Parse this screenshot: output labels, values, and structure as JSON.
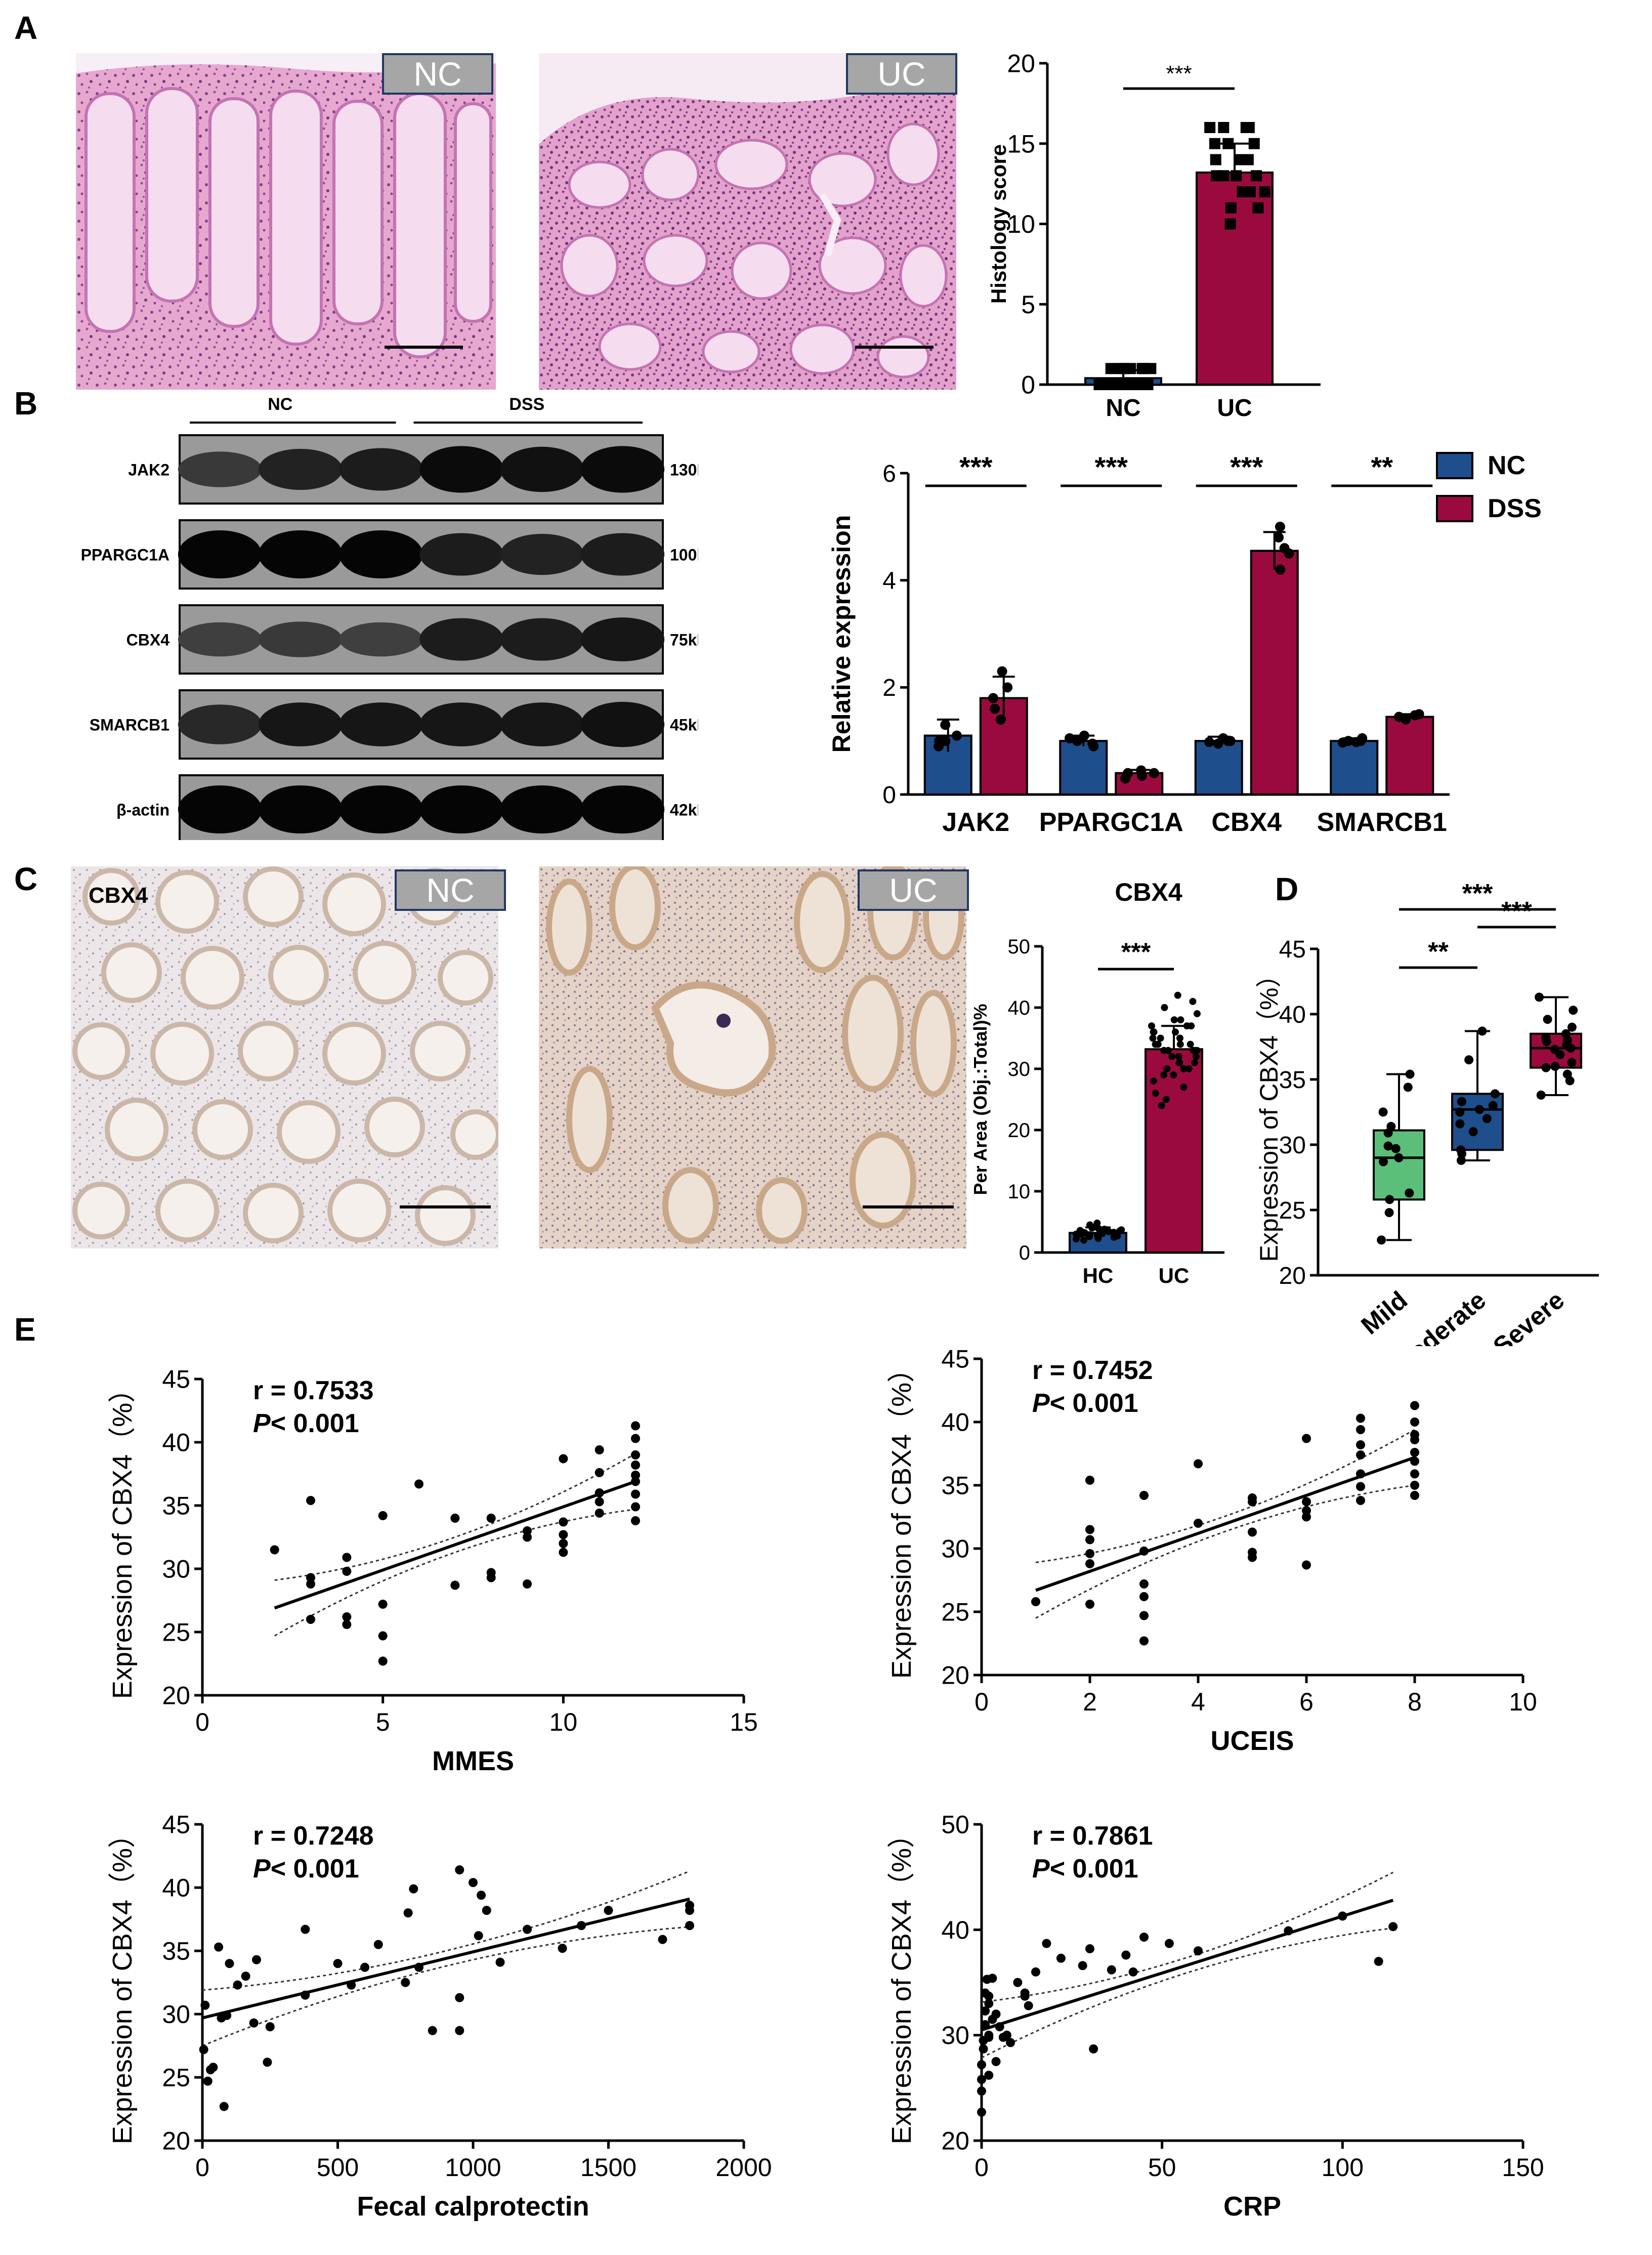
{
  "panels": {
    "a": "A",
    "b": "B",
    "c": "C",
    "d": "D",
    "e": "E"
  },
  "colors": {
    "nc_blue": "#1f4e8c",
    "dss_red": "#9b0a3f",
    "mild_green": "#5bbf7a",
    "he_pink": "#e7a9cf",
    "ihc_tan": "#d9b99a"
  },
  "histology": {
    "panels": [
      {
        "tag": "NC"
      },
      {
        "tag": "UC"
      }
    ]
  },
  "ihc": {
    "label": "CBX4",
    "panels": [
      {
        "tag": "NC"
      },
      {
        "tag": "UC"
      }
    ]
  },
  "western": {
    "group_labels": [
      "NC",
      "DSS"
    ],
    "bands": [
      {
        "protein": "JAK2",
        "size": "130KD",
        "intensity": [
          0.55,
          0.75,
          0.8,
          0.95,
          0.9,
          0.95
        ]
      },
      {
        "protein": "PPARGC1A",
        "size": "100kD",
        "intensity": [
          1.0,
          1.0,
          1.0,
          0.8,
          0.75,
          0.8
        ]
      },
      {
        "protein": "CBX4",
        "size": "75kD",
        "intensity": [
          0.5,
          0.55,
          0.5,
          0.8,
          0.8,
          0.85
        ]
      },
      {
        "protein": "SMARCB1",
        "size": "45kD",
        "intensity": [
          0.7,
          0.85,
          0.85,
          0.85,
          0.85,
          0.9
        ]
      },
      {
        "protein": "β-actin",
        "size": "42kD",
        "intensity": [
          1.0,
          1.0,
          1.0,
          1.0,
          1.0,
          1.0
        ]
      }
    ]
  },
  "chart_data": [
    {
      "id": "A-histology-score",
      "type": "bar",
      "ylabel": "Histology score",
      "ylim": [
        0,
        20
      ],
      "yticks": [
        0,
        5,
        10,
        15,
        20
      ],
      "categories": [
        "NC",
        "UC"
      ],
      "values": [
        0.4,
        13.2
      ],
      "errors": [
        0.5,
        1.8
      ],
      "colors": [
        "#1f4e8c",
        "#9b0a3f"
      ],
      "points": [
        [
          0,
          0,
          0,
          0,
          0,
          0,
          0,
          0,
          0,
          0,
          1,
          1,
          1,
          1,
          1,
          1,
          0,
          0,
          0,
          1
        ],
        [
          16,
          16,
          16,
          16,
          15,
          15,
          14,
          14,
          14,
          13,
          13,
          13,
          13,
          12,
          12,
          12,
          11,
          11,
          10,
          15
        ]
      ],
      "significance": "***"
    },
    {
      "id": "B-relative-expression",
      "type": "bar",
      "ylabel": "Relative expression",
      "ylim": [
        0,
        6
      ],
      "yticks": [
        0,
        2,
        4,
        6
      ],
      "categories": [
        "JAK2",
        "PPARGC1A",
        "CBX4",
        "SMARCB1"
      ],
      "series": [
        {
          "name": "NC",
          "values": [
            1.1,
            1.0,
            1.0,
            1.0
          ],
          "errors": [
            0.3,
            0.1,
            0.08,
            0.05
          ],
          "points": [
            [
              1.3,
              1.1,
              1.0,
              0.9,
              1.0
            ],
            [
              1.1,
              1.0,
              0.95,
              0.9,
              1.05
            ],
            [
              1.05,
              1.0,
              0.98,
              0.95,
              1.0
            ],
            [
              1.05,
              1.0,
              0.98,
              0.97,
              1.0
            ]
          ]
        },
        {
          "name": "DSS",
          "values": [
            1.8,
            0.4,
            4.55,
            1.45
          ],
          "errors": [
            0.4,
            0.06,
            0.35,
            0.05
          ],
          "points": [
            [
              2.3,
              2.0,
              1.6,
              1.4,
              1.8
            ],
            [
              0.45,
              0.4,
              0.35,
              0.3,
              0.4
            ],
            [
              5.0,
              4.8,
              4.5,
              4.2,
              4.6
            ],
            [
              1.5,
              1.45,
              1.4,
              1.42,
              1.48
            ]
          ]
        }
      ],
      "significance": [
        "***",
        "***",
        "***",
        "**"
      ],
      "legend": "top-right"
    },
    {
      "id": "C-cbx4-area",
      "type": "bar",
      "title": "CBX4",
      "ylabel": "Per Area (Obj.:Total)%",
      "ylim": [
        0,
        50
      ],
      "yticks": [
        0,
        10,
        20,
        30,
        40,
        50
      ],
      "categories": [
        "HC",
        "UC"
      ],
      "values": [
        3.2,
        33.2
      ],
      "errors": [
        0.9,
        3.8
      ],
      "colors": [
        "#1f4e8c",
        "#9b0a3f"
      ],
      "points": [
        [
          2.0,
          2.3,
          2.6,
          2.8,
          3.0,
          3.2,
          3.3,
          3.5,
          3.6,
          3.8,
          4.0,
          4.2,
          4.5,
          2.5,
          3.1,
          2.9,
          3.4,
          3.7,
          2.2,
          4.8,
          3.0,
          2.7,
          3.9,
          3.3
        ],
        [
          24,
          25,
          26,
          27,
          28,
          29,
          30,
          30,
          31,
          31,
          32,
          32,
          33,
          33,
          33,
          34,
          34,
          34,
          35,
          35,
          36,
          36,
          37,
          37,
          38,
          38,
          39,
          40,
          41,
          42,
          29,
          31,
          33,
          35,
          36,
          32,
          34,
          30,
          37,
          33
        ]
      ],
      "significance": "***"
    },
    {
      "id": "D-cbx4-severity",
      "type": "box",
      "ylabel": "Expression of CBX4（%）",
      "ylim": [
        20,
        45
      ],
      "yticks": [
        20,
        25,
        30,
        35,
        40,
        45
      ],
      "categories": [
        "Mild",
        "Moderate",
        "Severe"
      ],
      "boxes": [
        {
          "min": 22.7,
          "q1": 25.8,
          "median": 29.0,
          "q3": 31.1,
          "max": 35.4
        },
        {
          "min": 28.8,
          "q1": 29.6,
          "median": 32.7,
          "q3": 33.9,
          "max": 38.7
        },
        {
          "min": 33.8,
          "q1": 35.9,
          "median": 37.4,
          "q3": 38.5,
          "max": 41.3
        }
      ],
      "colors": [
        "#5bbf7a",
        "#1f4e8c",
        "#9b0a3f"
      ],
      "points": [
        [
          22.7,
          24.8,
          25.8,
          26.3,
          28.7,
          29.0,
          29.7,
          29.9,
          30.9,
          31.4,
          32.5,
          34.4,
          35.4
        ],
        [
          28.8,
          29.3,
          29.6,
          31.6,
          32.5,
          32.7,
          33.0,
          33.3,
          33.9,
          36.5,
          38.7,
          32.0,
          31.0
        ],
        [
          33.8,
          34.9,
          35.4,
          35.9,
          36.3,
          36.9,
          37.3,
          37.4,
          37.6,
          37.9,
          38.2,
          38.5,
          39.0,
          39.6,
          40.3,
          41.3,
          36.0,
          38.0
        ]
      ],
      "significance": [
        {
          "pair": "Mild-Severe",
          "label": "***"
        },
        {
          "pair": "Mild-Moderate",
          "label": "**"
        },
        {
          "pair": "Moderate-Severe",
          "label": "***"
        }
      ]
    },
    {
      "id": "E1-mmes",
      "type": "scatter",
      "xlabel": "MMES",
      "ylabel": "Expression of CBX4（%）",
      "xlim": [
        0,
        15
      ],
      "ylim": [
        20,
        45
      ],
      "xticks": [
        0,
        5,
        10,
        15
      ],
      "yticks": [
        20,
        25,
        30,
        35,
        40,
        45
      ],
      "annotation_r": "r = 0.7533",
      "annotation_p": "< 0.001",
      "fit": {
        "x": [
          2,
          12
        ],
        "y": [
          26.9,
          36.9
        ]
      },
      "points": [
        [
          2,
          31.5
        ],
        [
          3,
          26.0
        ],
        [
          3,
          28.8
        ],
        [
          3,
          29.3
        ],
        [
          3,
          35.4
        ],
        [
          4,
          25.6
        ],
        [
          4,
          26.2
        ],
        [
          4,
          29.8
        ],
        [
          4,
          30.9
        ],
        [
          5,
          22.7
        ],
        [
          5,
          24.7
        ],
        [
          5,
          27.2
        ],
        [
          5,
          34.2
        ],
        [
          6,
          36.7
        ],
        [
          7,
          28.7
        ],
        [
          7,
          34.0
        ],
        [
          8,
          29.3
        ],
        [
          8,
          29.7
        ],
        [
          8,
          34.0
        ],
        [
          9,
          28.8
        ],
        [
          9,
          32.5
        ],
        [
          9,
          33.0
        ],
        [
          10,
          31.3
        ],
        [
          10,
          32.0
        ],
        [
          10,
          32.7
        ],
        [
          10,
          33.7
        ],
        [
          10,
          38.7
        ],
        [
          11,
          34.4
        ],
        [
          11,
          35.3
        ],
        [
          11,
          36.0
        ],
        [
          11,
          37.6
        ],
        [
          11,
          39.4
        ],
        [
          12,
          33.8
        ],
        [
          12,
          34.9
        ],
        [
          12,
          35.9
        ],
        [
          12,
          36.9
        ],
        [
          12,
          37.4
        ],
        [
          12,
          38.2
        ],
        [
          12,
          39.0
        ],
        [
          12,
          40.3
        ],
        [
          12,
          41.3
        ]
      ]
    },
    {
      "id": "E2-uceis",
      "type": "scatter",
      "xlabel": "UCEIS",
      "ylabel": "Expression of CBX4（%）",
      "xlim": [
        0,
        10
      ],
      "ylim": [
        20,
        45
      ],
      "xticks": [
        0,
        2,
        4,
        6,
        8,
        10
      ],
      "yticks": [
        20,
        25,
        30,
        35,
        40,
        45
      ],
      "annotation_r": "r = 0.7452",
      "annotation_p": "< 0.001",
      "fit": {
        "x": [
          1,
          8
        ],
        "y": [
          26.7,
          37.2
        ]
      },
      "points": [
        [
          1,
          25.8
        ],
        [
          2,
          25.6
        ],
        [
          2,
          28.8
        ],
        [
          2,
          29.6
        ],
        [
          2,
          30.7
        ],
        [
          2,
          31.5
        ],
        [
          2,
          35.4
        ],
        [
          3,
          22.7
        ],
        [
          3,
          24.7
        ],
        [
          3,
          26.2
        ],
        [
          3,
          27.2
        ],
        [
          3,
          29.8
        ],
        [
          3,
          34.2
        ],
        [
          4,
          32.0
        ],
        [
          4,
          36.7
        ],
        [
          5,
          29.3
        ],
        [
          5,
          29.7
        ],
        [
          5,
          31.3
        ],
        [
          5,
          33.7
        ],
        [
          5,
          34.0
        ],
        [
          6,
          28.7
        ],
        [
          6,
          32.5
        ],
        [
          6,
          33.0
        ],
        [
          6,
          33.7
        ],
        [
          6,
          38.7
        ],
        [
          7,
          33.8
        ],
        [
          7,
          34.9
        ],
        [
          7,
          35.9
        ],
        [
          7,
          37.4
        ],
        [
          7,
          38.2
        ],
        [
          7,
          39.4
        ],
        [
          7,
          40.3
        ],
        [
          8,
          34.2
        ],
        [
          8,
          35.0
        ],
        [
          8,
          35.9
        ],
        [
          8,
          36.9
        ],
        [
          8,
          37.6
        ],
        [
          8,
          38.6
        ],
        [
          8,
          39.0
        ],
        [
          8,
          40.0
        ],
        [
          8,
          41.3
        ]
      ]
    },
    {
      "id": "E3-fecal-calprotectin",
      "type": "scatter",
      "xlabel": "Fecal calprotectin",
      "ylabel": "Expression of CBX4（%）",
      "xlim": [
        0,
        2000
      ],
      "ylim": [
        20,
        45
      ],
      "xticks": [
        0,
        500,
        1000,
        1500,
        2000
      ],
      "yticks": [
        20,
        25,
        30,
        35,
        40,
        45
      ],
      "annotation_r": "r = 0.7248",
      "annotation_p": "< 0.001",
      "fit": {
        "x": [
          0,
          1800
        ],
        "y": [
          29.7,
          39.1
        ]
      },
      "points": [
        [
          5,
          27.2
        ],
        [
          10,
          30.7
        ],
        [
          20,
          24.7
        ],
        [
          30,
          25.6
        ],
        [
          40,
          25.8
        ],
        [
          60,
          35.3
        ],
        [
          70,
          29.7
        ],
        [
          80,
          22.7
        ],
        [
          90,
          29.9
        ],
        [
          100,
          34.0
        ],
        [
          130,
          32.3
        ],
        [
          160,
          33.0
        ],
        [
          190,
          29.3
        ],
        [
          200,
          34.3
        ],
        [
          240,
          26.2
        ],
        [
          250,
          29.0
        ],
        [
          380,
          31.5
        ],
        [
          380,
          36.7
        ],
        [
          500,
          34.0
        ],
        [
          550,
          32.3
        ],
        [
          600,
          33.7
        ],
        [
          650,
          35.5
        ],
        [
          750,
          32.5
        ],
        [
          760,
          38.0
        ],
        [
          780,
          39.9
        ],
        [
          800,
          33.7
        ],
        [
          850,
          28.7
        ],
        [
          950,
          28.7
        ],
        [
          950,
          31.3
        ],
        [
          950,
          41.4
        ],
        [
          1000,
          40.4
        ],
        [
          1020,
          36.2
        ],
        [
          1030,
          39.4
        ],
        [
          1050,
          38.2
        ],
        [
          1100,
          34.1
        ],
        [
          1200,
          36.7
        ],
        [
          1330,
          35.2
        ],
        [
          1400,
          37.0
        ],
        [
          1500,
          38.2
        ],
        [
          1700,
          35.9
        ],
        [
          1800,
          37.0
        ],
        [
          1800,
          38.6
        ],
        [
          1800,
          38.2
        ]
      ]
    },
    {
      "id": "E4-crp",
      "type": "scatter",
      "xlabel": "CRP",
      "ylabel": "Expression of CBX4（%）",
      "xlim": [
        0,
        150
      ],
      "ylim": [
        20,
        50
      ],
      "xticks": [
        0,
        50,
        100,
        150
      ],
      "yticks": [
        20,
        30,
        40,
        50
      ],
      "annotation_r": "r = 0.7861",
      "annotation_p": "< 0.001",
      "fit": {
        "x": [
          0,
          114
        ],
        "y": [
          30.5,
          42.8
        ]
      },
      "points": [
        [
          0,
          22.7
        ],
        [
          0,
          24.7
        ],
        [
          0,
          25.8
        ],
        [
          0,
          27.2
        ],
        [
          0.5,
          28.7
        ],
        [
          0.5,
          29.5
        ],
        [
          1,
          31.0
        ],
        [
          1,
          32.3
        ],
        [
          1,
          34.0
        ],
        [
          1.5,
          35.3
        ],
        [
          2,
          26.2
        ],
        [
          2,
          29.8
        ],
        [
          2,
          30.0
        ],
        [
          2,
          33.0
        ],
        [
          2,
          33.7
        ],
        [
          3,
          31.5
        ],
        [
          3,
          35.4
        ],
        [
          4,
          27.5
        ],
        [
          4,
          32.0
        ],
        [
          5,
          30.8
        ],
        [
          6,
          29.8
        ],
        [
          7,
          30.0
        ],
        [
          8,
          29.3
        ],
        [
          10,
          35.0
        ],
        [
          12,
          33.7
        ],
        [
          12,
          34.0
        ],
        [
          13,
          32.8
        ],
        [
          15,
          36.0
        ],
        [
          18,
          38.7
        ],
        [
          22,
          37.3
        ],
        [
          28,
          36.6
        ],
        [
          30,
          38.2
        ],
        [
          31,
          28.7
        ],
        [
          40,
          37.6
        ],
        [
          45,
          39.3
        ],
        [
          52,
          38.7
        ],
        [
          60,
          38.0
        ],
        [
          85,
          39.9
        ],
        [
          100,
          41.3
        ],
        [
          110,
          37.0
        ],
        [
          114,
          40.3
        ],
        [
          42,
          36.0
        ],
        [
          36,
          36.2
        ]
      ]
    }
  ]
}
